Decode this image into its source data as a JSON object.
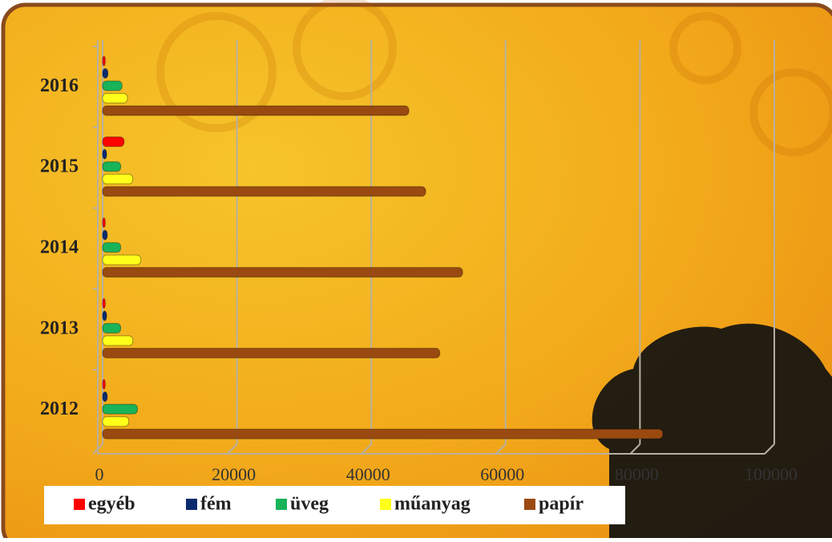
{
  "chart_data": {
    "type": "bar",
    "orientation": "horizontal",
    "categories": [
      "2012",
      "2013",
      "2014",
      "2015",
      "2016"
    ],
    "series": [
      {
        "name": "egyéb",
        "color": "#ff0000",
        "values": [
          400,
          400,
          400,
          3200,
          400
        ]
      },
      {
        "name": "fém",
        "color": "#0a2a6e",
        "values": [
          700,
          600,
          700,
          600,
          800
        ]
      },
      {
        "name": "üveg",
        "color": "#19b35a",
        "values": [
          5200,
          2700,
          2700,
          2700,
          2900
        ]
      },
      {
        "name": "műanyag",
        "color": "#ffff1a",
        "values": [
          3900,
          4500,
          5700,
          4500,
          3700
        ]
      },
      {
        "name": "papír",
        "color": "#9a4a10",
        "values": [
          83400,
          50200,
          53600,
          48100,
          45600
        ]
      }
    ],
    "xlim": [
      0,
      100000
    ],
    "xticks": [
      0,
      20000,
      40000,
      60000,
      80000,
      100000
    ],
    "grid": true,
    "legend": "bottom"
  }
}
